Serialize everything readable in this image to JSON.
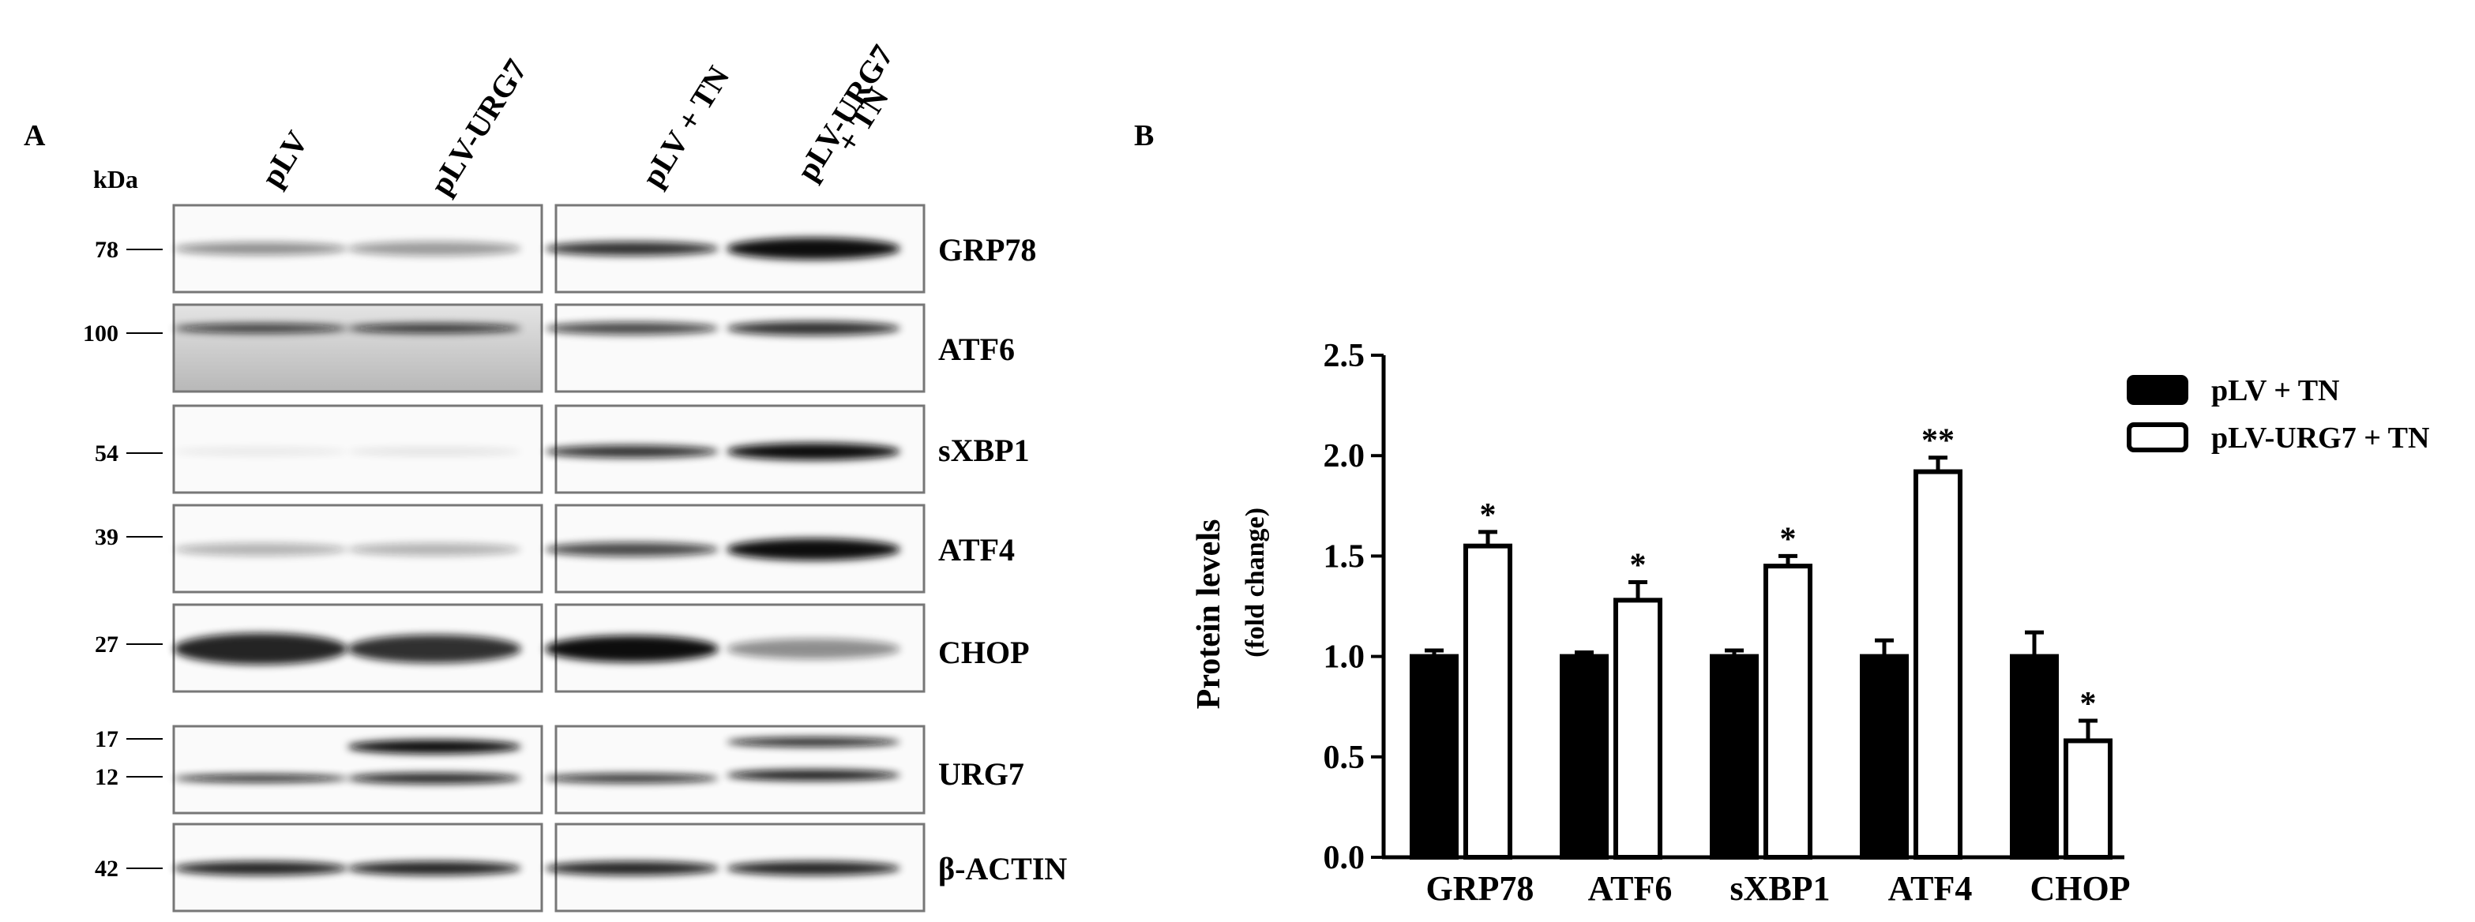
{
  "panel_a": {
    "label": "A",
    "kda_label": "kDa",
    "lanes": [
      "pLV",
      "pLV-URG7",
      "pLV + TN",
      "pLV-URG7",
      "+ TN"
    ],
    "markers": [
      "78",
      "100",
      "54",
      "39",
      "27",
      "17",
      "12",
      "42"
    ],
    "proteins": [
      "GRP78",
      "ATF6",
      "sXBP1",
      "ATF4",
      "CHOP",
      "URG7",
      "β-ACTIN"
    ]
  },
  "panel_b_label": "B",
  "chart_data": {
    "type": "bar",
    "y_label": [
      "Protein levels",
      "(fold change)"
    ],
    "categories": [
      "GRP78",
      "ATF6",
      "sXBP1",
      "ATF4",
      "CHOP"
    ],
    "series": [
      {
        "name": "pLV + TN",
        "color": "#000000",
        "values": [
          1.0,
          1.0,
          1.0,
          1.0,
          1.0
        ],
        "errors": [
          0.03,
          0.02,
          0.03,
          0.08,
          0.12
        ]
      },
      {
        "name": "pLV-URG7 + TN",
        "color": "#ffffff",
        "values": [
          1.55,
          1.28,
          1.45,
          1.92,
          0.58
        ],
        "errors": [
          0.07,
          0.09,
          0.05,
          0.07,
          0.1
        ]
      }
    ],
    "annotations": [
      "*",
      "*",
      "*",
      "**",
      "*"
    ],
    "ylim": [
      0,
      2.5
    ],
    "yticks": [
      {
        "value": 0,
        "label": "0.0"
      },
      {
        "value": 0.5,
        "label": "0.5"
      },
      {
        "value": 1,
        "label": "1.0"
      },
      {
        "value": 1.5,
        "label": "1.5"
      },
      {
        "value": 2,
        "label": "2.0"
      },
      {
        "value": 2.5,
        "label": "2.5"
      }
    ],
    "legend": "upper right"
  }
}
